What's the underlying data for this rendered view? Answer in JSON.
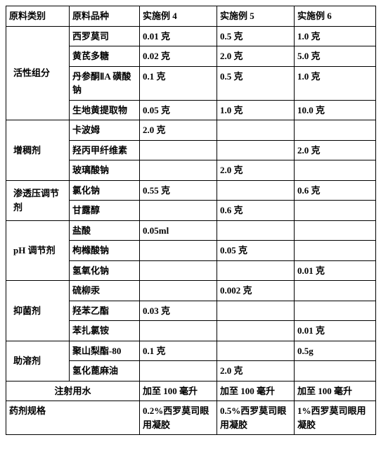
{
  "header": {
    "col0": "原料类别",
    "col1": "原料品种",
    "col2": "实施例 4",
    "col3": "实施例 5",
    "col4": "实施例 6"
  },
  "groups": [
    {
      "label": "活性组分",
      "rows": [
        {
          "variety": "西罗莫司",
          "e4": "0.01 克",
          "e5": "0.5 克",
          "e6": "1.0 克"
        },
        {
          "variety": "黄芪多糖",
          "e4": "0.02 克",
          "e5": "2.0 克",
          "e6": "5.0 克"
        },
        {
          "variety": "丹参酮ⅡA 磺酸钠",
          "e4": "0.1 克",
          "e5": "0.5 克",
          "e6": "1.0 克"
        },
        {
          "variety": "生地黄提取物",
          "e4": "0.05 克",
          "e5": "1.0 克",
          "e6": "10.0 克"
        }
      ]
    },
    {
      "label": "增稠剂",
      "rows": [
        {
          "variety": "卡波姆",
          "e4": "2.0 克",
          "e5": "",
          "e6": ""
        },
        {
          "variety": "羟丙甲纤维素",
          "e4": "",
          "e5": "",
          "e6": "2.0 克"
        },
        {
          "variety": "玻璃酸钠",
          "e4": "",
          "e5": "2.0 克",
          "e6": ""
        }
      ]
    },
    {
      "label": "渗透压调节剂",
      "rows": [
        {
          "variety": "氯化钠",
          "e4": "0.55 克",
          "e5": "",
          "e6": "0.6 克"
        },
        {
          "variety": "甘露醇",
          "e4": "",
          "e5": "0.6 克",
          "e6": ""
        }
      ]
    },
    {
      "label": "pH 调节剂",
      "rows": [
        {
          "variety": "盐酸",
          "e4": "0.05ml",
          "e5": "",
          "e6": ""
        },
        {
          "variety": "枸橼酸钠",
          "e4": "",
          "e5": "0.05 克",
          "e6": ""
        },
        {
          "variety": "氢氧化钠",
          "e4": "",
          "e5": "",
          "e6": "0.01 克"
        }
      ]
    },
    {
      "label": "抑菌剂",
      "rows": [
        {
          "variety": "硫柳汞",
          "e4": "",
          "e5": "0.002 克",
          "e6": ""
        },
        {
          "variety": "羟苯乙酯",
          "e4": "0.03 克",
          "e5": "",
          "e6": ""
        },
        {
          "variety": "苯扎氯铵",
          "e4": "",
          "e5": "",
          "e6": "0.01 克"
        }
      ]
    },
    {
      "label": "助溶剂",
      "rows": [
        {
          "variety": "聚山梨酯-80",
          "e4": "0.1 克",
          "e5": "",
          "e6": "0.5g"
        },
        {
          "variety": "氢化蓖麻油",
          "e4": "",
          "e5": "2.0 克",
          "e6": ""
        }
      ]
    }
  ],
  "water": {
    "label": "注射用水",
    "e4": "加至 100 毫升",
    "e5": "加至 100 毫升",
    "e6": "加至 100 毫升"
  },
  "spec": {
    "label": "药剂规格",
    "e4": "0.2%西罗莫司眼用凝胶",
    "e5": "0.5%西罗莫司眼用凝胶",
    "e6": "1%西罗莫司眼用凝胶"
  }
}
